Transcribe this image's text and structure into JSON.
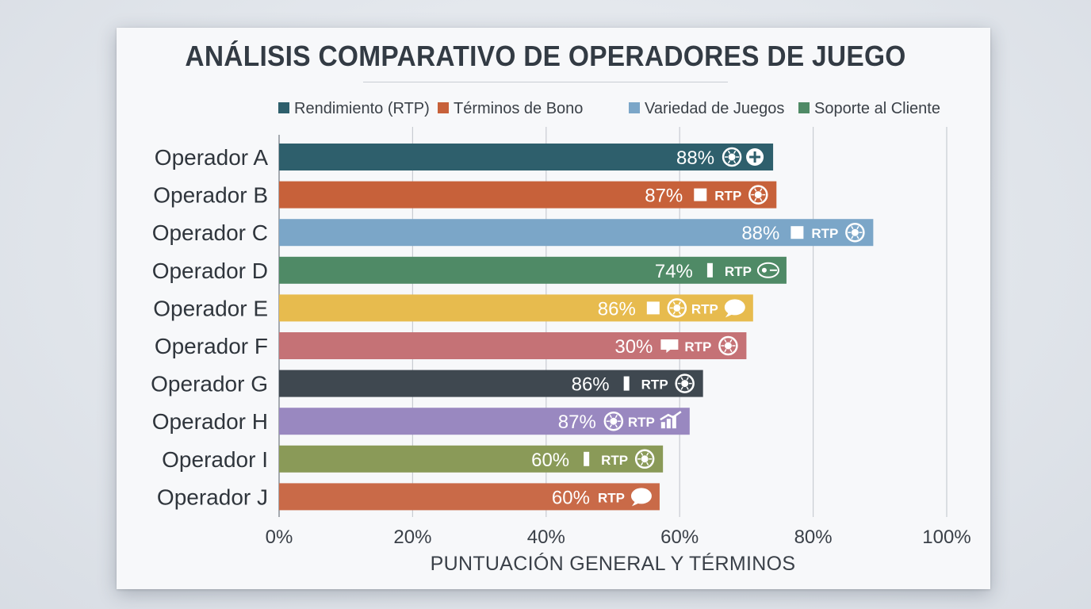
{
  "title": "ANÁLISIS COMPARATIVO DE OPERADORES DE JUEGO",
  "legend": [
    {
      "label": "Rendimiento (RTP)",
      "color": "#2e5f6c"
    },
    {
      "label": "Términos de Bono",
      "color": "#c7613a"
    },
    {
      "label": "Variedad de Juegos",
      "color": "#7ba6c8"
    },
    {
      "label": "Soporte al Cliente",
      "color": "#4f8a66"
    }
  ],
  "chart_data": {
    "type": "bar",
    "orientation": "horizontal",
    "xlabel": "PUNTUACIÓN GENERAL Y TÉRMINOS",
    "xlim": [
      0,
      100
    ],
    "xticks": [
      "0%",
      "20%",
      "40%",
      "60%",
      "80%",
      "100%"
    ],
    "grid": true,
    "legend_position": "top",
    "categories": [
      "Operador A",
      "Operador B",
      "Operador C",
      "Operador D",
      "Operador E",
      "Operador F",
      "Operador G",
      "Operador H",
      "Operador I",
      "Operador J"
    ],
    "values": [
      74,
      74.5,
      89,
      76,
      71,
      70,
      63.5,
      61.5,
      57.5,
      57
    ],
    "bar_labels": [
      "88%",
      "87%",
      "88%",
      "74%",
      "86%",
      "30%",
      "86%",
      "87%",
      "60%",
      "60%"
    ],
    "bar_colors": [
      "#2e5f6c",
      "#c7613a",
      "#7ba6c8",
      "#4f8a66",
      "#e7bb4e",
      "#c57276",
      "#3f4850",
      "#9988c0",
      "#8a9a58",
      "#c96a48"
    ],
    "bar_badges": [
      {
        "text": "",
        "icons": [
          "chip-icon",
          "joystick-icon"
        ]
      },
      {
        "text": "RTP",
        "icons": [
          "square-icon",
          "roulette-icon"
        ]
      },
      {
        "text": "RTP",
        "icons": [
          "square-icon",
          "gear-icon"
        ]
      },
      {
        "text": "RTP",
        "icons": [
          "bar-icon",
          "controller-icon"
        ]
      },
      {
        "text": "RTP",
        "icons": [
          "square-icon",
          "chip-icon",
          "chat-icon"
        ]
      },
      {
        "text": "RTP",
        "icons": [
          "message-icon",
          "compass-icon"
        ]
      },
      {
        "text": "RTP",
        "icons": [
          "bar-icon",
          "bulb-icon"
        ]
      },
      {
        "text": "RTP",
        "icons": [
          "chip-icon",
          "growth-icon"
        ]
      },
      {
        "text": "RTP",
        "icons": [
          "bar-icon",
          "chip-icon"
        ]
      },
      {
        "text": "RTP",
        "icons": [
          "chat-icon"
        ]
      }
    ]
  }
}
